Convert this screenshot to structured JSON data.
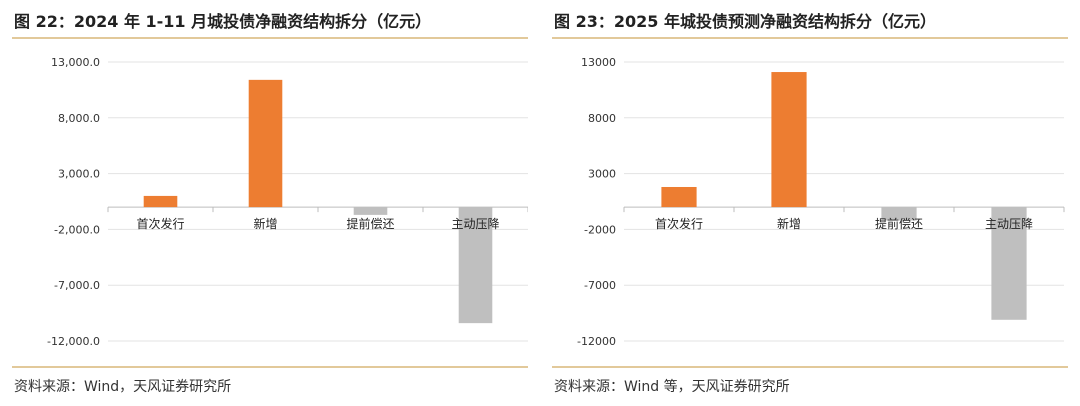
{
  "panels": [
    {
      "title": "图 22：2024 年 1-11 月城投债净融资结构拆分（亿元）",
      "source": "资料来源：Wind，天风证券研究所"
    },
    {
      "title": "图 23：2025 年城投债预测净融资结构拆分（亿元）",
      "source": "资料来源：Wind 等，天风证券研究所"
    }
  ],
  "chart_data": [
    {
      "type": "bar",
      "title": "图 22：2024 年 1-11 月城投债净融资结构拆分（亿元）",
      "categories": [
        "首次发行",
        "新增",
        "提前偿还",
        "主动压降"
      ],
      "values": [
        1000,
        11400,
        -700,
        -10400
      ],
      "ylim": [
        -12000,
        13000
      ],
      "yticks": [
        13000,
        8000,
        3000,
        -2000,
        -7000,
        -12000
      ],
      "ytick_labels": [
        "13,000.0",
        "8,000.0",
        "3,000.0",
        "-2,000.0",
        "-7,000.0",
        "-12,000.0"
      ],
      "colors": [
        "#ed7d31",
        "#ed7d31",
        "#bfbfbf",
        "#bfbfbf"
      ],
      "grid": true,
      "legend": "none"
    },
    {
      "type": "bar",
      "title": "图 23：2025 年城投债预测净融资结构拆分（亿元）",
      "categories": [
        "首次发行",
        "新增",
        "提前偿还",
        "主动压降"
      ],
      "values": [
        1800,
        12100,
        -1200,
        -10100
      ],
      "ylim": [
        -12000,
        13000
      ],
      "yticks": [
        13000,
        8000,
        3000,
        -2000,
        -7000,
        -12000
      ],
      "ytick_labels": [
        "13000",
        "8000",
        "3000",
        "-2000",
        "-7000",
        "-12000"
      ],
      "colors": [
        "#ed7d31",
        "#ed7d31",
        "#bfbfbf",
        "#bfbfbf"
      ],
      "grid": true,
      "legend": "none"
    }
  ]
}
